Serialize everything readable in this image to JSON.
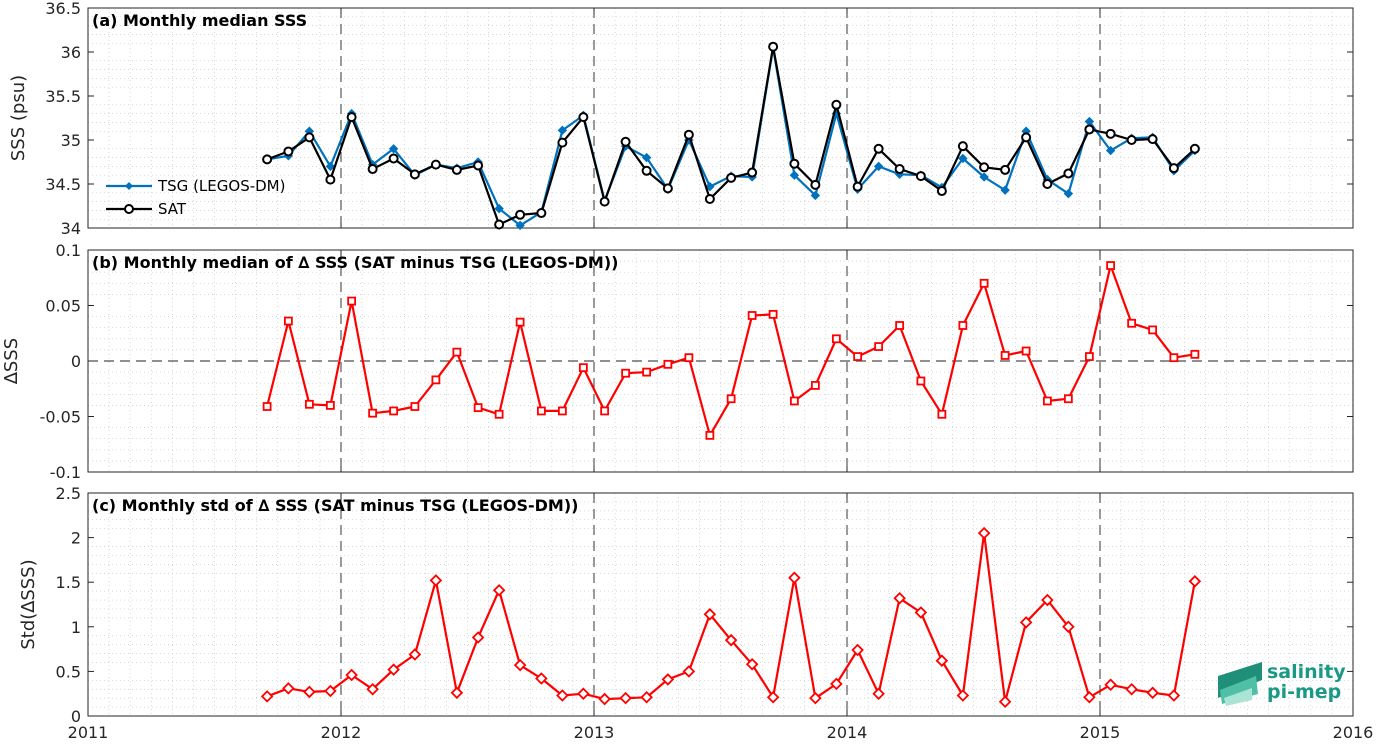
{
  "chart_data": [
    {
      "type": "line",
      "title": "(a) Monthly median SSS",
      "ylabel": "SSS (psu)",
      "xlim": [
        2011,
        2016
      ],
      "ylim": [
        34,
        36.5
      ],
      "yticks": [
        "34",
        "34.5",
        "35",
        "35.5",
        "36",
        "36.5"
      ],
      "ytick_values": [
        34,
        34.5,
        35,
        35.5,
        36,
        36.5
      ],
      "grid": true,
      "legend": "left",
      "x": [
        2011.708,
        2011.792,
        2011.875,
        2011.958,
        2012.042,
        2012.125,
        2012.208,
        2012.292,
        2012.375,
        2012.458,
        2012.542,
        2012.625,
        2012.708,
        2012.792,
        2012.875,
        2012.958,
        2013.042,
        2013.125,
        2013.208,
        2013.292,
        2013.375,
        2013.458,
        2013.542,
        2013.625,
        2013.708,
        2013.792,
        2013.875,
        2013.958,
        2014.042,
        2014.125,
        2014.208,
        2014.292,
        2014.375,
        2014.458,
        2014.542,
        2014.625,
        2014.708,
        2014.792,
        2014.875,
        2014.958,
        2015.042,
        2015.125,
        2015.208,
        2015.292,
        2015.375
      ],
      "series": [
        {
          "name": "TSG (LEGOS-DM)",
          "color": "#0072bd",
          "marker": "diamond",
          "values": [
            34.78,
            34.82,
            35.1,
            34.7,
            35.3,
            34.72,
            34.9,
            34.6,
            34.72,
            34.68,
            34.75,
            34.22,
            34.03,
            34.18,
            35.11,
            35.28,
            34.31,
            34.93,
            34.8,
            34.44,
            35.0,
            34.47,
            34.59,
            34.58,
            36.05,
            34.6,
            34.37,
            35.3,
            34.44,
            34.7,
            34.61,
            34.6,
            34.46,
            34.79,
            34.58,
            34.43,
            35.1,
            34.55,
            34.39,
            35.21,
            34.88,
            35.02,
            35.03,
            34.65,
            34.88
          ]
        },
        {
          "name": "SAT",
          "color": "#000000",
          "marker": "circle",
          "values": [
            34.78,
            34.87,
            35.03,
            34.55,
            35.26,
            34.67,
            34.79,
            34.61,
            34.72,
            34.66,
            34.71,
            34.04,
            34.15,
            34.17,
            34.97,
            35.26,
            34.3,
            34.98,
            34.65,
            34.45,
            35.06,
            34.33,
            34.57,
            34.63,
            36.06,
            34.73,
            34.49,
            35.4,
            34.47,
            34.9,
            34.67,
            34.59,
            34.42,
            34.93,
            34.69,
            34.66,
            35.03,
            34.5,
            34.62,
            35.12,
            35.07,
            35.0,
            35.01,
            34.68,
            34.9
          ]
        }
      ]
    },
    {
      "type": "line",
      "title": "(b) Monthly median of ∆ SSS (SAT minus TSG (LEGOS-DM))",
      "ylabel": "∆SSS",
      "xlim": [
        2011,
        2016
      ],
      "ylim": [
        -0.1,
        0.1
      ],
      "yticks": [
        "-0.1",
        "-0.05",
        "0",
        "0.05",
        "0.1"
      ],
      "ytick_values": [
        -0.1,
        -0.05,
        0,
        0.05,
        0.1
      ],
      "grid": true,
      "zero_line": true,
      "x": [
        2011.708,
        2011.792,
        2011.875,
        2011.958,
        2012.042,
        2012.125,
        2012.208,
        2012.292,
        2012.375,
        2012.458,
        2012.542,
        2012.625,
        2012.708,
        2012.792,
        2012.875,
        2012.958,
        2013.042,
        2013.125,
        2013.208,
        2013.292,
        2013.375,
        2013.458,
        2013.542,
        2013.625,
        2013.708,
        2013.792,
        2013.875,
        2013.958,
        2014.042,
        2014.125,
        2014.208,
        2014.292,
        2014.375,
        2014.458,
        2014.542,
        2014.625,
        2014.708,
        2014.792,
        2014.875,
        2014.958,
        2015.042,
        2015.125,
        2015.208,
        2015.292,
        2015.375
      ],
      "series": [
        {
          "color": "#ff0000",
          "marker": "square",
          "values": [
            -0.041,
            0.036,
            -0.039,
            -0.04,
            0.054,
            -0.047,
            -0.045,
            -0.041,
            -0.017,
            0.008,
            -0.042,
            -0.048,
            0.035,
            -0.045,
            -0.045,
            -0.006,
            -0.045,
            -0.011,
            -0.01,
            -0.003,
            0.003,
            -0.067,
            -0.034,
            0.041,
            0.042,
            -0.036,
            -0.022,
            0.02,
            0.004,
            0.013,
            0.032,
            -0.018,
            -0.048,
            0.032,
            0.07,
            0.005,
            0.009,
            -0.036,
            -0.034,
            0.004,
            0.086,
            0.034,
            0.028,
            0.003,
            0.006
          ]
        }
      ]
    },
    {
      "type": "line",
      "title": "(c) Monthly std of ∆ SSS (SAT minus TSG (LEGOS-DM))",
      "ylabel": "Std(∆SSS)",
      "xlim": [
        2011,
        2016
      ],
      "ylim": [
        0,
        2.5
      ],
      "yticks": [
        "0",
        "0.5",
        "1",
        "1.5",
        "2",
        "2.5"
      ],
      "ytick_values": [
        0,
        0.5,
        1,
        1.5,
        2,
        2.5
      ],
      "xticks": [
        "2011",
        "2012",
        "2013",
        "2014",
        "2015",
        "2016"
      ],
      "xtick_values": [
        2011,
        2012,
        2013,
        2014,
        2015,
        2016
      ],
      "grid": true,
      "x": [
        2011.708,
        2011.792,
        2011.875,
        2011.958,
        2012.042,
        2012.125,
        2012.208,
        2012.292,
        2012.375,
        2012.458,
        2012.542,
        2012.625,
        2012.708,
        2012.792,
        2012.875,
        2012.958,
        2013.042,
        2013.125,
        2013.208,
        2013.292,
        2013.375,
        2013.458,
        2013.542,
        2013.625,
        2013.708,
        2013.792,
        2013.875,
        2013.958,
        2014.042,
        2014.125,
        2014.208,
        2014.292,
        2014.375,
        2014.458,
        2014.542,
        2014.625,
        2014.708,
        2014.792,
        2014.875,
        2014.958,
        2015.042,
        2015.125,
        2015.208,
        2015.292,
        2015.375
      ],
      "series": [
        {
          "color": "#ff0000",
          "marker": "diamond",
          "values": [
            0.22,
            0.31,
            0.27,
            0.28,
            0.46,
            0.3,
            0.52,
            0.69,
            1.52,
            0.26,
            0.88,
            1.41,
            0.57,
            0.42,
            0.23,
            0.25,
            0.19,
            0.2,
            0.21,
            0.41,
            0.5,
            1.14,
            0.85,
            0.58,
            0.21,
            1.55,
            0.2,
            0.36,
            0.74,
            0.25,
            1.32,
            1.16,
            0.62,
            0.23,
            2.05,
            0.16,
            1.05,
            1.3,
            1.0,
            0.21,
            0.35,
            0.3,
            0.26,
            0.23,
            1.51
          ]
        }
      ]
    }
  ],
  "logo": {
    "line1": "salinity",
    "line2": "pi-mep"
  }
}
